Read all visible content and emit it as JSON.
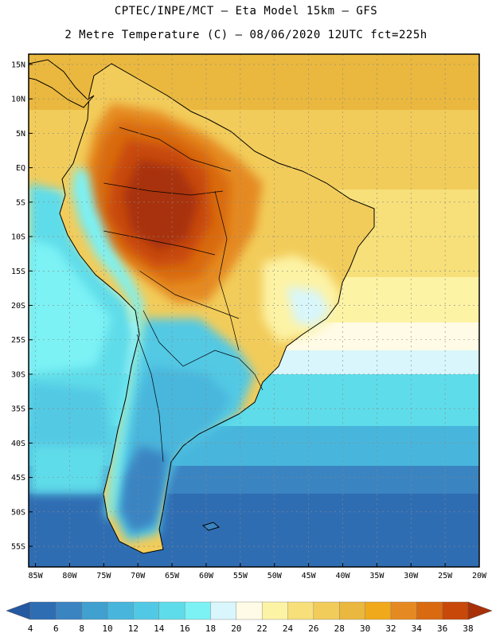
{
  "header": {
    "line1": "CPTEC/INPE/MCT –  Eta Model 15km – GFS",
    "line2": "2 Metre Temperature (C) – 08/06/2020 12UTC fct=225h"
  },
  "map": {
    "region": "South America",
    "lat_labels": [
      "15N",
      "10N",
      "5N",
      "EQ",
      "5S",
      "10S",
      "15S",
      "20S",
      "25S",
      "30S",
      "35S",
      "40S",
      "45S",
      "50S",
      "55S"
    ],
    "lon_labels": [
      "85W",
      "80W",
      "75W",
      "70W",
      "65W",
      "60W",
      "55W",
      "50W",
      "45W",
      "40W",
      "35W",
      "30W",
      "25W",
      "20W"
    ],
    "lat_range": [
      -58,
      16.5
    ],
    "lon_range": [
      -86,
      -20
    ]
  },
  "colorbar": {
    "labels": [
      "4",
      "6",
      "8",
      "10",
      "12",
      "14",
      "16",
      "18",
      "20",
      "22",
      "24",
      "26",
      "28",
      "30",
      "32",
      "34",
      "36",
      "38"
    ],
    "colors": [
      "#2f6db3",
      "#3b84c2",
      "#40a0cf",
      "#48b6dc",
      "#52c9e4",
      "#5fdce9",
      "#7cf2f5",
      "#d8f6fb",
      "#fffbe6",
      "#fdf3a5",
      "#f7e07a",
      "#f2cc5a",
      "#eab83e",
      "#f0a91a",
      "#e58a22",
      "#d96a10",
      "#c8480a"
    ],
    "under_color": "#2458a0",
    "over_color": "#a83008"
  }
}
